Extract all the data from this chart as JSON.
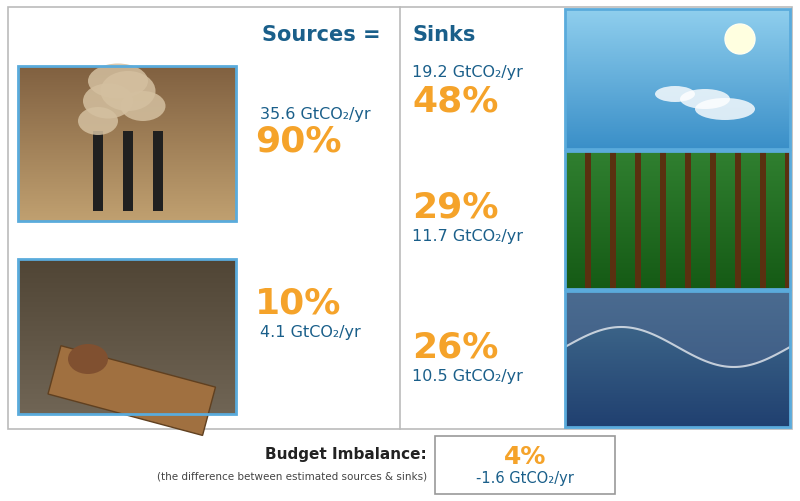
{
  "title_sources": "Sources = ",
  "title_sinks": "Sinks",
  "source1_pct": "90%",
  "source1_val": "35.6 GtCO₂/yr",
  "source2_pct": "10%",
  "source2_val": "4.1 GtCO₂/yr",
  "sink1_pct": "48%",
  "sink1_val": "19.2 GtCO₂/yr",
  "sink2_pct": "29%",
  "sink2_val": "11.7 GtCO₂/yr",
  "sink3_pct": "26%",
  "sink3_val": "10.5 GtCO₂/yr",
  "budget_label": "Budget Imbalance:",
  "budget_sub": "(the difference between estimated sources & sinks)",
  "budget_pct": "4%",
  "budget_val": "-1.6 GtCO₂/yr",
  "color_orange": "#F5A32A",
  "color_dark_blue": "#1A5F8A",
  "color_border_blue": "#5AABDC",
  "color_border_gray": "#BBBBBB",
  "background": "#FFFFFF",
  "img1_color": "#B09070",
  "img2_color": "#556050",
  "sink1_color": "#4A9FC8",
  "sink2_color": "#3A7A3A",
  "sink3_color": "#606880"
}
